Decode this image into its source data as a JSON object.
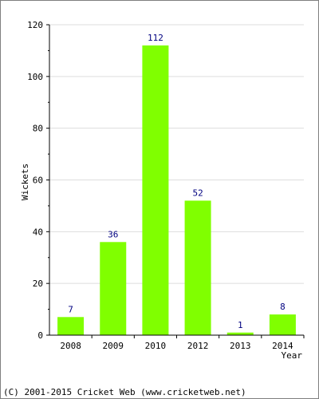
{
  "chart_data": {
    "type": "bar",
    "categories": [
      "2008",
      "2009",
      "2010",
      "2012",
      "2013",
      "2014"
    ],
    "values": [
      7,
      36,
      112,
      52,
      1,
      8
    ],
    "data_labels": [
      "7",
      "36",
      "112",
      "52",
      "1",
      "8"
    ],
    "title": "",
    "xlabel": "Year",
    "ylabel": "Wickets",
    "ylim": [
      0,
      120
    ],
    "yticks": [
      "0",
      "20",
      "40",
      "60",
      "80",
      "100",
      "120"
    ],
    "grid": true,
    "bar_color": "#80ff00",
    "label_color": "#000080"
  },
  "footer": {
    "copyright": "(C) 2001-2015 Cricket Web (www.cricketweb.net)"
  }
}
